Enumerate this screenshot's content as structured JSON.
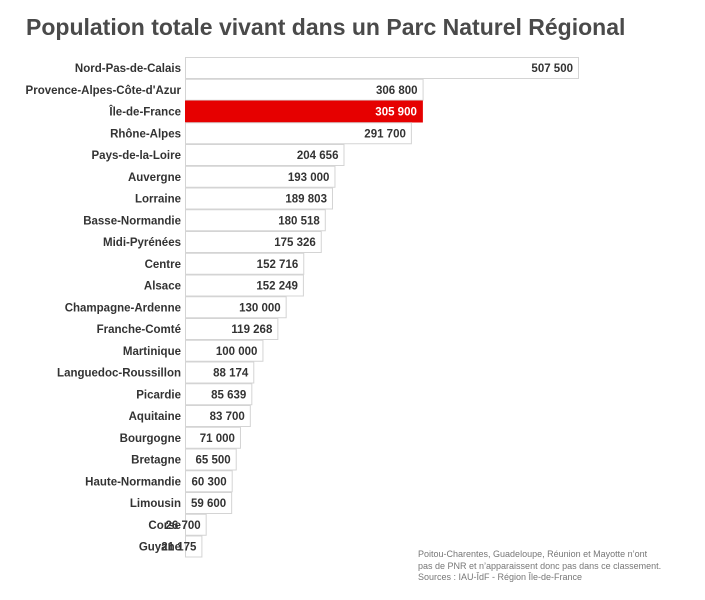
{
  "chart_data": {
    "type": "bar",
    "orientation": "horizontal",
    "title": "Population totale vivant dans un Parc Naturel Régional",
    "categories": [
      "Nord-Pas-de-Calais",
      "Provence-Alpes-Côte-d'Azur",
      "Île-de-France",
      "Rhône-Alpes",
      "Pays-de-la-Loire",
      "Auvergne",
      "Lorraine",
      "Basse-Normandie",
      "Midi-Pyrénées",
      "Centre",
      "Alsace",
      "Champagne-Ardenne",
      "Franche-Comté",
      "Martinique",
      "Languedoc-Roussillon",
      "Picardie",
      "Aquitaine",
      "Bourgogne",
      "Bretagne",
      "Haute-Normandie",
      "Limousin",
      "Corse",
      "Guyane"
    ],
    "values": [
      507500,
      306800,
      305900,
      291700,
      204656,
      193000,
      189803,
      180518,
      175326,
      152716,
      152249,
      130000,
      119268,
      100000,
      88174,
      85639,
      83700,
      71000,
      65500,
      60300,
      59600,
      26700,
      21175
    ],
    "value_labels": [
      "507 500",
      "306 800",
      "305 900",
      "291 700",
      "204 656",
      "193 000",
      "189 803",
      "180 518",
      "175 326",
      "152 716",
      "152 249",
      "130 000",
      "119 268",
      "100 000",
      "88 174",
      "85 639",
      "83 700",
      "71 000",
      "65 500",
      "60 300",
      "59 600",
      "26 700",
      "21 175"
    ],
    "highlight_category": "Île-de-France",
    "colors": {
      "bar_fill": "#ffffff",
      "bar_stroke": "#d4d4d4",
      "highlight_fill": "#e60000",
      "label_text": "#333333",
      "highlight_text": "#ffffff"
    }
  },
  "note": {
    "lines": [
      "Poitou-Charentes, Guadeloupe, Réunion et Mayotte n’ont",
      "pas de PNR et n’apparaissent donc pas dans ce classement.",
      "Sources : IAU-ÎdF - Région Île-de-France"
    ]
  }
}
